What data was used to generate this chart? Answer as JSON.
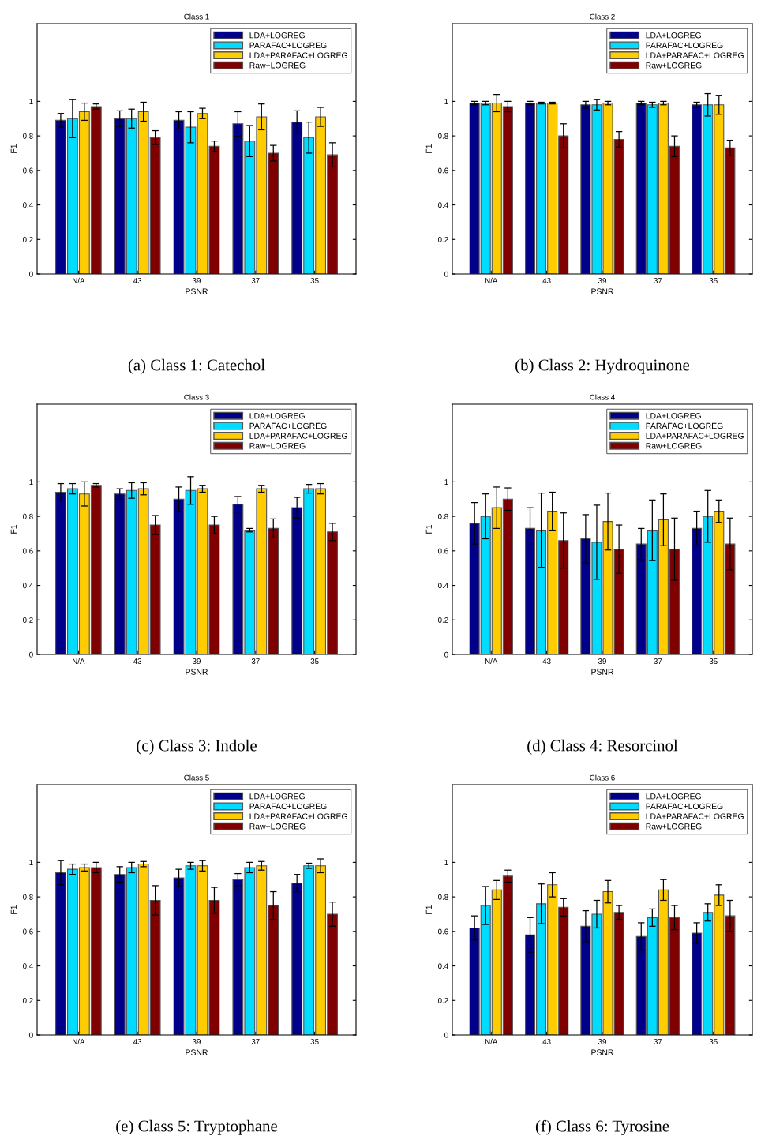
{
  "chart_data": [
    {
      "type": "bar",
      "title": "Class 1",
      "xlabel": "PSNR",
      "ylabel": "F1",
      "categories": [
        "N/A",
        "43",
        "39",
        "37",
        "35"
      ],
      "ylim": [
        0,
        1.45
      ],
      "yticks": [
        0,
        0.2,
        0.4,
        0.6,
        0.8,
        1
      ],
      "legend": "top right",
      "annotations": [
        "(a) Class 1: Catechol"
      ],
      "series": [
        {
          "name": "LDA+LOGREG",
          "color": "#00008b",
          "values": [
            0.89,
            0.9,
            0.89,
            0.87,
            0.88
          ],
          "errors": [
            0.04,
            0.045,
            0.05,
            0.07,
            0.065
          ]
        },
        {
          "name": "PARAFAC+LOGREG",
          "color": "#00dcff",
          "values": [
            0.9,
            0.9,
            0.85,
            0.77,
            0.79
          ],
          "errors": [
            0.11,
            0.055,
            0.09,
            0.09,
            0.09
          ]
        },
        {
          "name": "LDA+PARAFAC+LOGREG",
          "color": "#ffcc00",
          "values": [
            0.94,
            0.94,
            0.93,
            0.91,
            0.91
          ],
          "errors": [
            0.05,
            0.055,
            0.03,
            0.075,
            0.055
          ]
        },
        {
          "name": "Raw+LOGREG",
          "color": "#800000",
          "values": [
            0.97,
            0.79,
            0.74,
            0.7,
            0.69
          ],
          "errors": [
            0.015,
            0.04,
            0.03,
            0.045,
            0.07
          ]
        }
      ]
    },
    {
      "type": "bar",
      "title": "Class 2",
      "xlabel": "PSNR",
      "ylabel": "F1",
      "categories": [
        "N/A",
        "43",
        "39",
        "37",
        "35"
      ],
      "ylim": [
        0,
        1.45
      ],
      "yticks": [
        0,
        0.2,
        0.4,
        0.6,
        0.8,
        1
      ],
      "legend": "top right",
      "annotations": [
        "(b) Class 2: Hydroquinone"
      ],
      "series": [
        {
          "name": "LDA+LOGREG",
          "color": "#00008b",
          "values": [
            0.99,
            0.99,
            0.98,
            0.99,
            0.98
          ],
          "errors": [
            0.01,
            0.01,
            0.02,
            0.01,
            0.015
          ]
        },
        {
          "name": "PARAFAC+LOGREG",
          "color": "#00dcff",
          "values": [
            0.99,
            0.99,
            0.98,
            0.98,
            0.98
          ],
          "errors": [
            0.01,
            0.005,
            0.03,
            0.015,
            0.065
          ]
        },
        {
          "name": "LDA+PARAFAC+LOGREG",
          "color": "#ffcc00",
          "values": [
            0.99,
            0.99,
            0.99,
            0.99,
            0.98
          ],
          "errors": [
            0.05,
            0.005,
            0.01,
            0.01,
            0.055
          ]
        },
        {
          "name": "Raw+LOGREG",
          "color": "#800000",
          "values": [
            0.97,
            0.8,
            0.78,
            0.74,
            0.73
          ],
          "errors": [
            0.03,
            0.07,
            0.045,
            0.06,
            0.045
          ]
        }
      ]
    },
    {
      "type": "bar",
      "title": "Class 3",
      "xlabel": "PSNR",
      "ylabel": "F1",
      "categories": [
        "N/A",
        "43",
        "39",
        "37",
        "35"
      ],
      "ylim": [
        0,
        1.45
      ],
      "yticks": [
        0,
        0.2,
        0.4,
        0.6,
        0.8,
        1
      ],
      "legend": "top right",
      "annotations": [
        "(c) Class 3: Indole"
      ],
      "series": [
        {
          "name": "LDA+LOGREG",
          "color": "#00008b",
          "values": [
            0.94,
            0.93,
            0.9,
            0.87,
            0.85
          ],
          "errors": [
            0.05,
            0.03,
            0.07,
            0.045,
            0.06
          ]
        },
        {
          "name": "PARAFAC+LOGREG",
          "color": "#00dcff",
          "values": [
            0.96,
            0.95,
            0.95,
            0.72,
            0.96
          ],
          "errors": [
            0.03,
            0.045,
            0.08,
            0.01,
            0.025
          ]
        },
        {
          "name": "LDA+PARAFAC+LOGREG",
          "color": "#ffcc00",
          "values": [
            0.93,
            0.96,
            0.96,
            0.96,
            0.96
          ],
          "errors": [
            0.07,
            0.035,
            0.02,
            0.02,
            0.03
          ]
        },
        {
          "name": "Raw+LOGREG",
          "color": "#800000",
          "values": [
            0.98,
            0.75,
            0.75,
            0.73,
            0.71
          ],
          "errors": [
            0.01,
            0.055,
            0.05,
            0.055,
            0.05
          ]
        }
      ]
    },
    {
      "type": "bar",
      "title": "Class 4",
      "xlabel": "PSNR",
      "ylabel": "F1",
      "categories": [
        "N/A",
        "43",
        "39",
        "37",
        "35"
      ],
      "ylim": [
        0,
        1.45
      ],
      "yticks": [
        0,
        0.2,
        0.4,
        0.6,
        0.8,
        1
      ],
      "legend": "top right",
      "annotations": [
        "(d) Class 4: Resorcinol"
      ],
      "series": [
        {
          "name": "LDA+LOGREG",
          "color": "#00008b",
          "values": [
            0.76,
            0.73,
            0.67,
            0.64,
            0.73
          ],
          "errors": [
            0.12,
            0.12,
            0.14,
            0.09,
            0.1
          ]
        },
        {
          "name": "PARAFAC+LOGREG",
          "color": "#00dcff",
          "values": [
            0.8,
            0.72,
            0.65,
            0.72,
            0.8
          ],
          "errors": [
            0.13,
            0.215,
            0.215,
            0.175,
            0.15
          ]
        },
        {
          "name": "LDA+PARAFAC+LOGREG",
          "color": "#ffcc00",
          "values": [
            0.85,
            0.83,
            0.77,
            0.78,
            0.83
          ],
          "errors": [
            0.12,
            0.11,
            0.165,
            0.15,
            0.065
          ]
        },
        {
          "name": "Raw+LOGREG",
          "color": "#800000",
          "values": [
            0.9,
            0.66,
            0.61,
            0.61,
            0.64
          ],
          "errors": [
            0.065,
            0.16,
            0.14,
            0.18,
            0.15
          ]
        }
      ]
    },
    {
      "type": "bar",
      "title": "Class 5",
      "xlabel": "PSNR",
      "ylabel": "F1",
      "categories": [
        "N/A",
        "43",
        "39",
        "37",
        "35"
      ],
      "ylim": [
        0,
        1.45
      ],
      "yticks": [
        0,
        0.2,
        0.4,
        0.6,
        0.8,
        1
      ],
      "legend": "top right",
      "annotations": [
        "(e) Class 5: Tryptophane"
      ],
      "series": [
        {
          "name": "LDA+LOGREG",
          "color": "#00008b",
          "values": [
            0.94,
            0.93,
            0.91,
            0.9,
            0.88
          ],
          "errors": [
            0.07,
            0.045,
            0.05,
            0.035,
            0.05
          ]
        },
        {
          "name": "PARAFAC+LOGREG",
          "color": "#00dcff",
          "values": [
            0.96,
            0.97,
            0.98,
            0.97,
            0.98
          ],
          "errors": [
            0.03,
            0.03,
            0.02,
            0.03,
            0.015
          ]
        },
        {
          "name": "LDA+PARAFAC+LOGREG",
          "color": "#ffcc00",
          "values": [
            0.97,
            0.99,
            0.98,
            0.98,
            0.98
          ],
          "errors": [
            0.02,
            0.015,
            0.03,
            0.025,
            0.04
          ]
        },
        {
          "name": "Raw+LOGREG",
          "color": "#800000",
          "values": [
            0.97,
            0.78,
            0.78,
            0.75,
            0.7
          ],
          "errors": [
            0.03,
            0.085,
            0.075,
            0.08,
            0.07
          ]
        }
      ]
    },
    {
      "type": "bar",
      "title": "Class 6",
      "xlabel": "PSNR",
      "ylabel": "F1",
      "categories": [
        "N/A",
        "43",
        "39",
        "37",
        "35"
      ],
      "ylim": [
        0,
        1.45
      ],
      "yticks": [
        0,
        0.2,
        0.4,
        0.6,
        0.8,
        1
      ],
      "legend": "top right",
      "annotations": [
        "(f) Class 6: Tyrosine"
      ],
      "series": [
        {
          "name": "LDA+LOGREG",
          "color": "#00008b",
          "values": [
            0.62,
            0.58,
            0.63,
            0.57,
            0.59
          ],
          "errors": [
            0.07,
            0.1,
            0.09,
            0.08,
            0.06
          ]
        },
        {
          "name": "PARAFAC+LOGREG",
          "color": "#00dcff",
          "values": [
            0.75,
            0.76,
            0.7,
            0.68,
            0.71
          ],
          "errors": [
            0.11,
            0.115,
            0.08,
            0.05,
            0.05
          ]
        },
        {
          "name": "LDA+PARAFAC+LOGREG",
          "color": "#ffcc00",
          "values": [
            0.84,
            0.87,
            0.83,
            0.84,
            0.81
          ],
          "errors": [
            0.055,
            0.07,
            0.065,
            0.06,
            0.06
          ]
        },
        {
          "name": "Raw+LOGREG",
          "color": "#800000",
          "values": [
            0.92,
            0.74,
            0.71,
            0.68,
            0.69
          ],
          "errors": [
            0.035,
            0.05,
            0.04,
            0.07,
            0.09
          ]
        }
      ]
    }
  ]
}
